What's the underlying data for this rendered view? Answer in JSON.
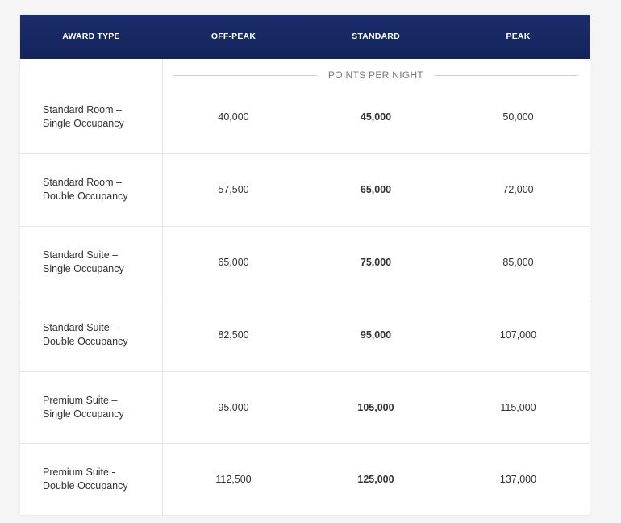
{
  "table": {
    "headers": [
      "AWARD TYPE",
      "OFF-PEAK",
      "STANDARD",
      "PEAK"
    ],
    "subheader": "POINTS PER NIGHT",
    "rows": [
      [
        "Standard Room –\nSingle Occupancy",
        "40,000",
        "45,000",
        "50,000"
      ],
      [
        "Standard Room –\nDouble Occupancy",
        "57,500",
        "65,000",
        "72,000"
      ],
      [
        "Standard Suite –\nSingle Occupancy",
        "65,000",
        "75,000",
        "85,000"
      ],
      [
        "Standard Suite  –\nDouble Occupancy",
        "82,500",
        "95,000",
        "107,000"
      ],
      [
        "Premium Suite –\nSingle Occupancy",
        "95,000",
        "105,000",
        "115,000"
      ],
      [
        "Premium Suite -\nDouble Occupancy",
        "112,500",
        "125,000",
        "137,000"
      ]
    ]
  }
}
